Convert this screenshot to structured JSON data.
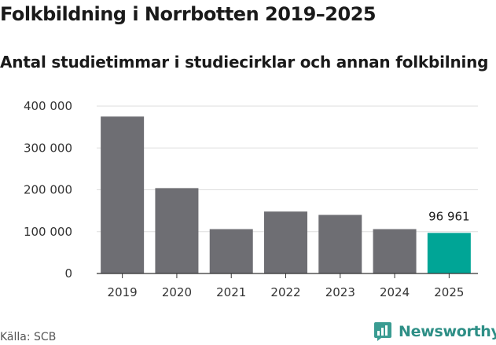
{
  "chart_data": {
    "type": "bar",
    "title": "Folkbildning i Norrbotten 2019–2025",
    "subtitle": "Antal studietimmar i studiecirklar och annan folkbilning",
    "categories": [
      "2019",
      "2020",
      "2021",
      "2022",
      "2023",
      "2024",
      "2025"
    ],
    "values": [
      375000,
      204000,
      106000,
      148000,
      140000,
      106000,
      96961
    ],
    "ylim": [
      0,
      400000
    ],
    "yticks": [
      0,
      100000,
      200000,
      300000,
      400000
    ],
    "ytick_labels": [
      "0",
      "100 000",
      "200 000",
      "300 000",
      "400 000"
    ],
    "highlight_index": 6,
    "highlight_label": "96 961",
    "xlabel": "",
    "ylabel": "",
    "grid": true,
    "colors": {
      "bar": "#6e6e73",
      "highlight": "#00a596",
      "grid": "#dddddd",
      "axis": "#333333"
    }
  },
  "footer": {
    "source": "Källa: SCB",
    "brand": "Newsworthy",
    "brand_icon": "newsworthy-logo-icon",
    "brand_color": "#2e8f86"
  }
}
